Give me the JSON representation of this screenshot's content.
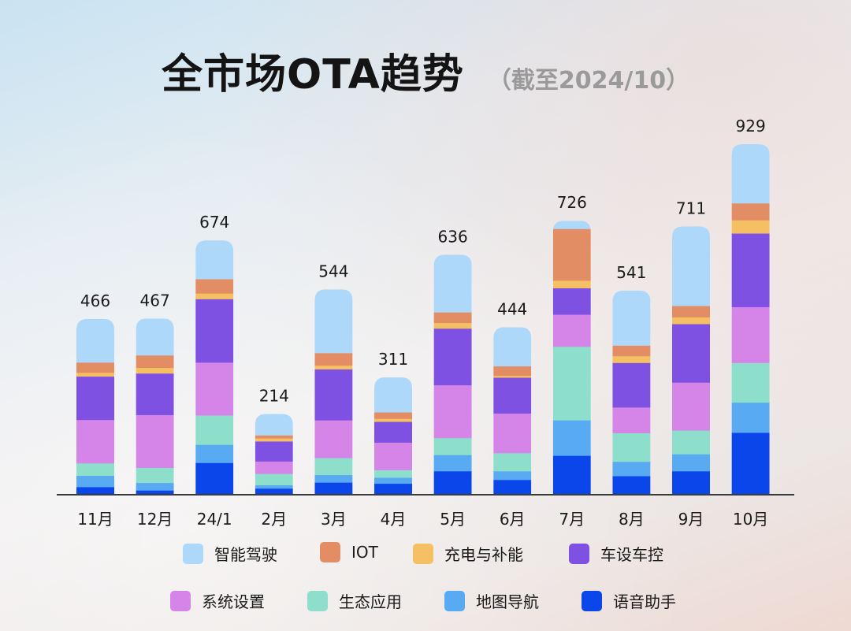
{
  "header": {
    "title": "全市场OTA趋势",
    "subtitle": "（截至2024/10）"
  },
  "chart_data": {
    "type": "bar",
    "stacked": true,
    "title": "全市场OTA趋势",
    "subtitle": "（截至2024/10）",
    "categories": [
      "11月",
      "12月",
      "24/1",
      "2月",
      "3月",
      "4月",
      "5月",
      "6月",
      "7月",
      "8月",
      "9月",
      "10月"
    ],
    "totals": [
      466,
      467,
      674,
      214,
      544,
      311,
      636,
      444,
      726,
      541,
      711,
      929
    ],
    "ylim": [
      0,
      929
    ],
    "legend_position": "bottom",
    "series": [
      {
        "name": "语音助手",
        "color": "#0b46ea",
        "values": [
          21,
          12,
          85,
          17,
          33,
          30,
          63,
          40,
          104,
          50,
          63,
          165
        ]
      },
      {
        "name": "地图导航",
        "color": "#58aaf2",
        "values": [
          30,
          20,
          48,
          9,
          20,
          16,
          43,
          23,
          94,
          38,
          45,
          80
        ]
      },
      {
        "name": "生态应用",
        "color": "#8ddfcb",
        "values": [
          33,
          40,
          78,
          30,
          45,
          20,
          45,
          48,
          195,
          76,
          63,
          105
        ]
      },
      {
        "name": "系统设置",
        "color": "#d584e8",
        "values": [
          115,
          140,
          140,
          33,
          100,
          73,
          140,
          105,
          85,
          68,
          127,
          148
        ]
      },
      {
        "name": "车设车控",
        "color": "#7e51e2",
        "values": [
          115,
          110,
          168,
          53,
          135,
          55,
          150,
          95,
          70,
          118,
          155,
          195
        ]
      },
      {
        "name": "充电与补能",
        "color": "#f5bf63",
        "values": [
          10,
          15,
          15,
          8,
          10,
          8,
          15,
          5,
          20,
          18,
          18,
          35
        ]
      },
      {
        "name": "IOT",
        "color": "#e38d64",
        "values": [
          27,
          33,
          38,
          8,
          33,
          17,
          28,
          25,
          137,
          28,
          30,
          45
        ]
      },
      {
        "name": "智能驾驶",
        "color": "#aed8fa",
        "values": [
          115,
          97,
          102,
          56,
          168,
          92,
          152,
          103,
          21,
          145,
          210,
          156
        ]
      }
    ]
  },
  "legend": [
    {
      "label": "智能驾驶",
      "color": "#aed8fa"
    },
    {
      "label": "IOT",
      "color": "#e38d64"
    },
    {
      "label": "充电与补能",
      "color": "#f5bf63"
    },
    {
      "label": "车设车控",
      "color": "#7e51e2"
    },
    {
      "label": "系统设置",
      "color": "#d584e8"
    },
    {
      "label": "生态应用",
      "color": "#8ddfcb"
    },
    {
      "label": "地图导航",
      "color": "#58aaf2"
    },
    {
      "label": "语音助手",
      "color": "#0b46ea"
    }
  ]
}
